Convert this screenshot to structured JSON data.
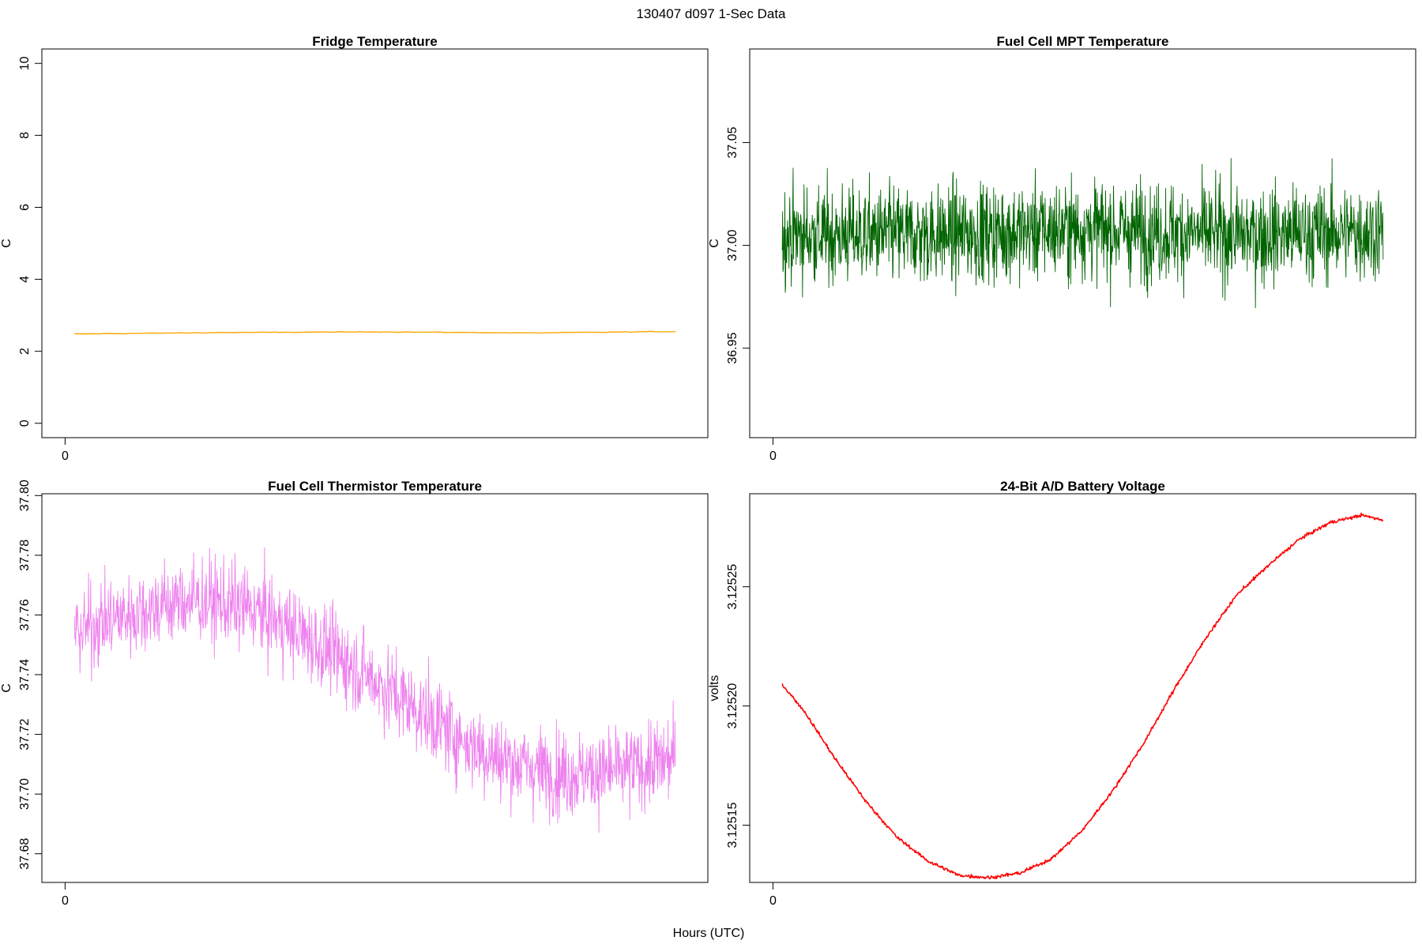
{
  "figure": {
    "title": "130407   d097   1-Sec Data",
    "xlabel": "Hours (UTC)"
  },
  "chart_data": [
    {
      "type": "line",
      "title": "Fridge Temperature",
      "ylabel": "C",
      "xlabel": "",
      "color": "#FFA500",
      "xlim": [
        -0.0375,
        1.0375
      ],
      "ylim": [
        -0.4,
        10.4
      ],
      "xticks": [
        0
      ],
      "xtick_labels": [
        "0"
      ],
      "yticks": [
        0,
        2,
        4,
        6,
        8,
        10
      ],
      "ytick_labels": [
        "0",
        "2",
        "4",
        "6",
        "8",
        "10"
      ],
      "series": [
        {
          "x": [
            0.015,
            0.25,
            0.5,
            0.75,
            0.985
          ],
          "y": [
            2.48,
            2.52,
            2.54,
            2.51,
            2.55
          ]
        }
      ]
    },
    {
      "type": "line",
      "title": "Fuel Cell MPT Temperature",
      "ylabel": "C",
      "xlabel": "",
      "color": "#006400",
      "xlim": [
        -0.0375,
        1.0375
      ],
      "ylim": [
        36.9065,
        37.0955
      ],
      "xticks": [
        0
      ],
      "xtick_labels": [
        "0"
      ],
      "yticks": [
        36.95,
        37.0,
        37.05
      ],
      "ytick_labels": [
        "36.95",
        "37.00",
        "37.05"
      ],
      "series": [
        {
          "x": [
            0.015,
            0.25,
            0.5,
            0.75,
            0.985
          ],
          "y": [
            37.005,
            37.005,
            37.008,
            37.005,
            37.007
          ]
        }
      ]
    },
    {
      "type": "line",
      "title": "Fuel Cell Thermistor Temperature",
      "ylabel": "C",
      "xlabel": "",
      "color": "#EE82EE",
      "xlim": [
        -0.0375,
        1.0375
      ],
      "ylim": [
        37.6704,
        37.8006
      ],
      "xticks": [
        0
      ],
      "xtick_labels": [
        "0"
      ],
      "yticks": [
        37.68,
        37.7,
        37.72,
        37.74,
        37.76,
        37.78,
        37.8
      ],
      "ytick_labels": [
        "37.68",
        "37.70",
        "37.72",
        "37.74",
        "37.76",
        "37.78",
        "37.80"
      ],
      "series": [
        {
          "x": [
            0.015,
            0.05,
            0.1,
            0.15,
            0.2,
            0.25,
            0.3,
            0.35,
            0.4,
            0.45,
            0.5,
            0.55,
            0.6,
            0.65,
            0.7,
            0.75,
            0.8,
            0.85,
            0.9,
            0.95,
            0.985
          ],
          "y": [
            37.754,
            37.757,
            37.76,
            37.763,
            37.765,
            37.764,
            37.762,
            37.757,
            37.751,
            37.745,
            37.738,
            37.731,
            37.724,
            37.717,
            37.712,
            37.709,
            37.707,
            37.707,
            37.708,
            37.71,
            37.712
          ]
        }
      ]
    },
    {
      "type": "line",
      "title": "24-Bit A/D Battery Voltage",
      "ylabel": "volts",
      "xlabel": "",
      "color": "#FF0000",
      "xlim": [
        -0.0375,
        1.0375
      ],
      "ylim": [
        3.125126,
        3.125289
      ],
      "xticks": [
        0
      ],
      "xtick_labels": [
        "0"
      ],
      "yticks": [
        3.12515,
        3.1252,
        3.12525
      ],
      "ytick_labels": [
        "3.12515",
        "3.12520",
        "3.12525"
      ],
      "series": [
        {
          "x": [
            0.015,
            0.05,
            0.1,
            0.15,
            0.2,
            0.25,
            0.3,
            0.35,
            0.4,
            0.45,
            0.5,
            0.55,
            0.6,
            0.65,
            0.7,
            0.75,
            0.8,
            0.85,
            0.9,
            0.95,
            0.985
          ],
          "y": [
            3.125209,
            3.125198,
            3.125178,
            3.12516,
            3.125145,
            3.125135,
            3.125129,
            3.125128,
            3.12513,
            3.125136,
            3.125148,
            3.125165,
            3.125185,
            3.125208,
            3.125229,
            3.125247,
            3.125259,
            3.12527,
            3.125277,
            3.12528,
            3.125278
          ]
        }
      ]
    }
  ]
}
